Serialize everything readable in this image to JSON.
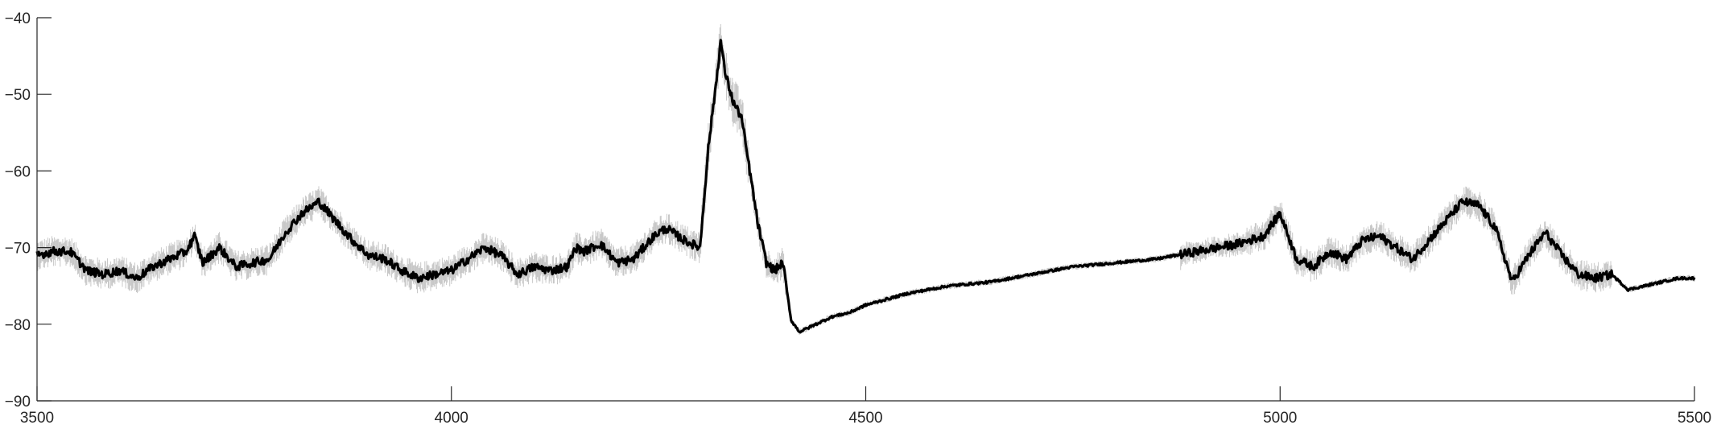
{
  "chart_data": {
    "type": "line",
    "title": "",
    "xlabel": "",
    "ylabel": "",
    "xlim": [
      3500,
      5500
    ],
    "ylim": [
      -90,
      -40
    ],
    "xticks": [
      3500,
      4000,
      4500,
      5000,
      5500
    ],
    "yticks": [
      -40,
      -50,
      -60,
      -70,
      -80,
      -90
    ],
    "grid": false,
    "legend": "none",
    "colors": {
      "mean": "#000000",
      "band": "#c8c8c8",
      "axis": "#262626"
    },
    "series": [
      {
        "role": "mean",
        "x": [
          3500,
          3520,
          3540,
          3560,
          3580,
          3600,
          3620,
          3640,
          3660,
          3680,
          3690,
          3700,
          3720,
          3740,
          3760,
          3780,
          3800,
          3820,
          3840,
          3860,
          3880,
          3900,
          3920,
          3940,
          3960,
          3980,
          4000,
          4020,
          4040,
          4060,
          4080,
          4100,
          4120,
          4140,
          4150,
          4160,
          4180,
          4200,
          4220,
          4240,
          4250,
          4260,
          4280,
          4300,
          4310,
          4320,
          4325,
          4330,
          4340,
          4350,
          4360,
          4370,
          4380,
          4390,
          4400,
          4410,
          4420,
          4440,
          4460,
          4480,
          4500,
          4550,
          4600,
          4650,
          4700,
          4750,
          4800,
          4850,
          4900,
          4950,
          4980,
          5000,
          5020,
          5040,
          5060,
          5080,
          5100,
          5120,
          5140,
          5160,
          5180,
          5200,
          5220,
          5240,
          5260,
          5280,
          5300,
          5320,
          5340,
          5360,
          5380,
          5400,
          5420,
          5440,
          5460,
          5480,
          5500
        ],
        "y": [
          -71,
          -70.5,
          -70.5,
          -73,
          -73.5,
          -73,
          -74,
          -72.5,
          -71.5,
          -70.5,
          -68.5,
          -72,
          -70,
          -72.5,
          -72,
          -71.5,
          -68,
          -65.5,
          -64,
          -66.5,
          -69,
          -71,
          -71.5,
          -73,
          -74,
          -73.5,
          -73,
          -71.5,
          -70,
          -71,
          -73.5,
          -72.5,
          -73,
          -72.5,
          -70,
          -70.5,
          -69.5,
          -72,
          -71.5,
          -69,
          -68,
          -67.5,
          -69,
          -70,
          -57,
          -48,
          -43,
          -47,
          -51,
          -53,
          -60,
          -67,
          -72,
          -73,
          -72,
          -79.5,
          -81,
          -80,
          -79,
          -78.5,
          -77.5,
          -76,
          -75,
          -74.5,
          -73.5,
          -72.5,
          -72,
          -71.5,
          -70.5,
          -69.5,
          -68.5,
          -65.5,
          -71.5,
          -72.5,
          -70.5,
          -71.5,
          -69,
          -68.5,
          -70,
          -71.5,
          -69,
          -66.5,
          -64,
          -64.5,
          -67.5,
          -74.5,
          -71,
          -68,
          -71,
          -73.5,
          -74,
          -73.5,
          -75.5,
          -75,
          -74.5,
          -74,
          -74
        ]
      }
    ]
  }
}
